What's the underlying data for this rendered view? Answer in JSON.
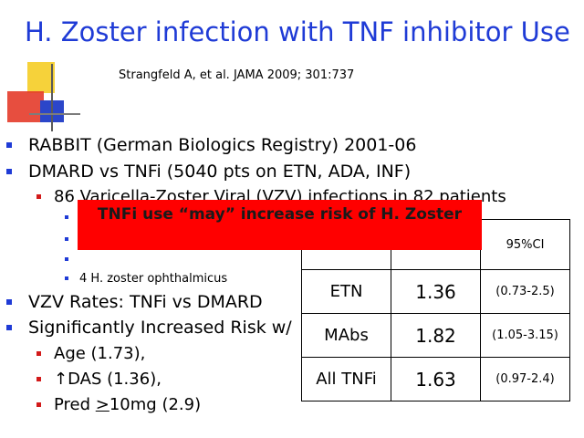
{
  "slide": {
    "title": "H. Zoster infection with TNF inhibitor Use",
    "citation": "Strangfeld A, et al. JAMA 2009; 301:737"
  },
  "bullets": {
    "b1": "RABBIT (German Biologics Registry) 2001-06",
    "b2": "DMARD  vs TNFi (5040 pts on ETN, ADA, INF)",
    "b2_sub": "86 Varicella-Zoster Viral (VZV) infections in 82 patients",
    "b2_sub_item4": "4 H. zoster ophthalmicus",
    "b3": "VZV Rates: TNFi vs DMARD",
    "b4": "Significantly Increased Risk w/",
    "risk_age": " Age (1.73),",
    "risk_das": "↑DAS (1.36),",
    "risk_pred_prefix": "Pred ",
    "risk_pred_ge": ">",
    "risk_pred_suffix": "10mg (2.9)"
  },
  "callout": {
    "text": "TNFi use “may” increase risk of H. Zoster"
  },
  "rates_table": {
    "header_ci": "95%CI",
    "rows": [
      {
        "group": "ETN",
        "value": "1.36",
        "ci": "(0.73-2.5)"
      },
      {
        "group": "MAbs",
        "value": "1.82",
        "ci": "(1.05-3.15)"
      },
      {
        "group": "All TNFi",
        "value": "1.63",
        "ci": "(0.97-2.4)"
      }
    ]
  },
  "colors": {
    "title": "#1f3bd6",
    "callout_bg": "#ff0000",
    "bullet_l1": "#1f3bd6",
    "bullet_l2": "#d21a1a"
  },
  "icons": {
    "corner": "decorative-squares-icon"
  }
}
